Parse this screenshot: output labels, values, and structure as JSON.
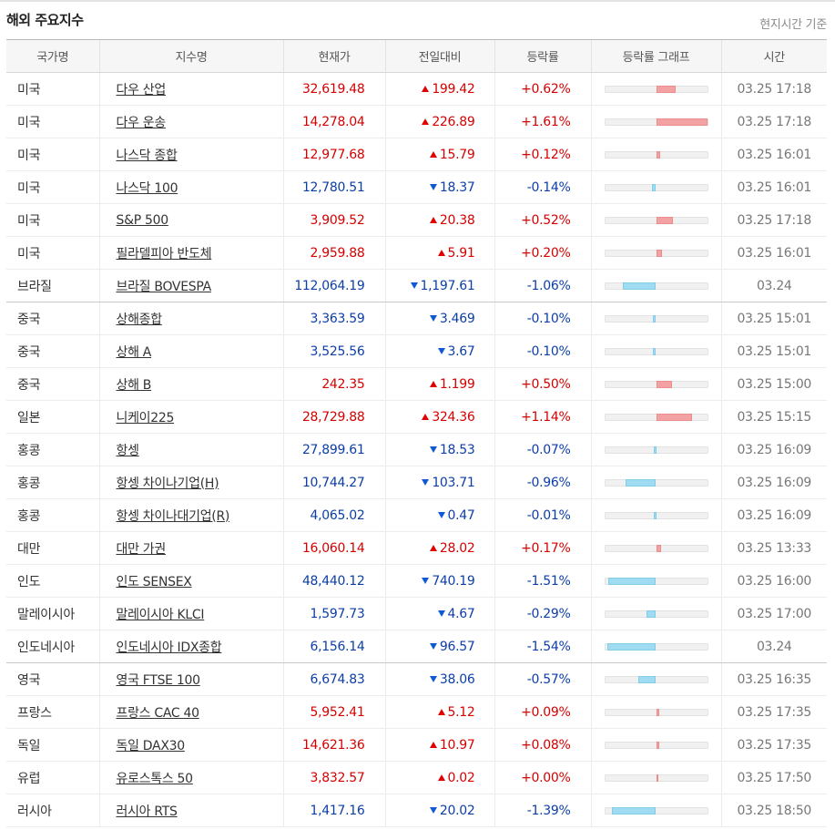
{
  "header": {
    "title": "해외 주요지수",
    "note": "현지시간 기준"
  },
  "columns": [
    "국가명",
    "지수명",
    "현재가",
    "전일대비",
    "등락률",
    "등락률 그래프",
    "시간"
  ],
  "colors": {
    "up_text": "#d60000",
    "down_text": "#0c3ea8",
    "up_bar": "#f2a2a2",
    "down_bar": "#9fdcf2"
  },
  "graph": {
    "max_abs_rate": 1.61
  },
  "rows": [
    {
      "country": "미국",
      "name": "다우 산업",
      "price": "32,619.48",
      "change": "199.42",
      "rate": "+0.62%",
      "rate_value": 0.62,
      "dir": "up",
      "time": "03.25 17:18"
    },
    {
      "country": "미국",
      "name": "다우 운송",
      "price": "14,278.04",
      "change": "226.89",
      "rate": "+1.61%",
      "rate_value": 1.61,
      "dir": "up",
      "time": "03.25 17:18"
    },
    {
      "country": "미국",
      "name": "나스닥 종합",
      "price": "12,977.68",
      "change": "15.79",
      "rate": "+0.12%",
      "rate_value": 0.12,
      "dir": "up",
      "time": "03.25 16:01"
    },
    {
      "country": "미국",
      "name": "나스닥 100",
      "price": "12,780.51",
      "change": "18.37",
      "rate": "-0.14%",
      "rate_value": -0.14,
      "dir": "down",
      "time": "03.25 16:01"
    },
    {
      "country": "미국",
      "name": "S&P 500",
      "price": "3,909.52",
      "change": "20.38",
      "rate": "+0.52%",
      "rate_value": 0.52,
      "dir": "up",
      "time": "03.25 17:18"
    },
    {
      "country": "미국",
      "name": "필라델피아 반도체",
      "price": "2,959.88",
      "change": "5.91",
      "rate": "+0.20%",
      "rate_value": 0.2,
      "dir": "up",
      "time": "03.25 16:01"
    },
    {
      "country": "브라질",
      "name": "브라질 BOVESPA",
      "price": "112,064.19",
      "change": "1,197.61",
      "rate": "-1.06%",
      "rate_value": -1.06,
      "dir": "down",
      "time": "03.24",
      "group_end": true
    },
    {
      "country": "중국",
      "name": "상해종합",
      "price": "3,363.59",
      "change": "3.469",
      "rate": "-0.10%",
      "rate_value": -0.1,
      "dir": "down",
      "time": "03.25 15:01"
    },
    {
      "country": "중국",
      "name": "상해 A",
      "price": "3,525.56",
      "change": "3.67",
      "rate": "-0.10%",
      "rate_value": -0.1,
      "dir": "down",
      "time": "03.25 15:01"
    },
    {
      "country": "중국",
      "name": "상해 B",
      "price": "242.35",
      "change": "1.199",
      "rate": "+0.50%",
      "rate_value": 0.5,
      "dir": "up",
      "time": "03.25 15:00"
    },
    {
      "country": "일본",
      "name": "니케이225",
      "price": "28,729.88",
      "change": "324.36",
      "rate": "+1.14%",
      "rate_value": 1.14,
      "dir": "up",
      "time": "03.25 15:15"
    },
    {
      "country": "홍콩",
      "name": "항셍",
      "price": "27,899.61",
      "change": "18.53",
      "rate": "-0.07%",
      "rate_value": -0.07,
      "dir": "down",
      "time": "03.25 16:09"
    },
    {
      "country": "홍콩",
      "name": "항셍 차이나기업(H)",
      "price": "10,744.27",
      "change": "103.71",
      "rate": "-0.96%",
      "rate_value": -0.96,
      "dir": "down",
      "time": "03.25 16:09"
    },
    {
      "country": "홍콩",
      "name": "항셍 차이나대기업(R)",
      "price": "4,065.02",
      "change": "0.47",
      "rate": "-0.01%",
      "rate_value": -0.01,
      "dir": "down",
      "time": "03.25 16:09"
    },
    {
      "country": "대만",
      "name": "대만 가권",
      "price": "16,060.14",
      "change": "28.02",
      "rate": "+0.17%",
      "rate_value": 0.17,
      "dir": "up",
      "time": "03.25 13:33"
    },
    {
      "country": "인도",
      "name": "인도 SENSEX",
      "price": "48,440.12",
      "change": "740.19",
      "rate": "-1.51%",
      "rate_value": -1.51,
      "dir": "down",
      "time": "03.25 16:00"
    },
    {
      "country": "말레이시아",
      "name": "말레이시아 KLCI",
      "price": "1,597.73",
      "change": "4.67",
      "rate": "-0.29%",
      "rate_value": -0.29,
      "dir": "down",
      "time": "03.25 17:00"
    },
    {
      "country": "인도네시아",
      "name": "인도네시아 IDX종합",
      "price": "6,156.14",
      "change": "96.57",
      "rate": "-1.54%",
      "rate_value": -1.54,
      "dir": "down",
      "time": "03.24",
      "group_end": true
    },
    {
      "country": "영국",
      "name": "영국 FTSE 100",
      "price": "6,674.83",
      "change": "38.06",
      "rate": "-0.57%",
      "rate_value": -0.57,
      "dir": "down",
      "time": "03.25 16:35"
    },
    {
      "country": "프랑스",
      "name": "프랑스 CAC 40",
      "price": "5,952.41",
      "change": "5.12",
      "rate": "+0.09%",
      "rate_value": 0.09,
      "dir": "up",
      "time": "03.25 17:35"
    },
    {
      "country": "독일",
      "name": "독일 DAX30",
      "price": "14,621.36",
      "change": "10.97",
      "rate": "+0.08%",
      "rate_value": 0.08,
      "dir": "up",
      "time": "03.25 17:35"
    },
    {
      "country": "유럽",
      "name": "유로스톡스 50",
      "price": "3,832.57",
      "change": "0.02",
      "rate": "+0.00%",
      "rate_value": 0.0,
      "dir": "up",
      "time": "03.25 17:50"
    },
    {
      "country": "러시아",
      "name": "러시아 RTS",
      "price": "1,417.16",
      "change": "20.02",
      "rate": "-1.39%",
      "rate_value": -1.39,
      "dir": "down",
      "time": "03.25 18:50"
    }
  ]
}
